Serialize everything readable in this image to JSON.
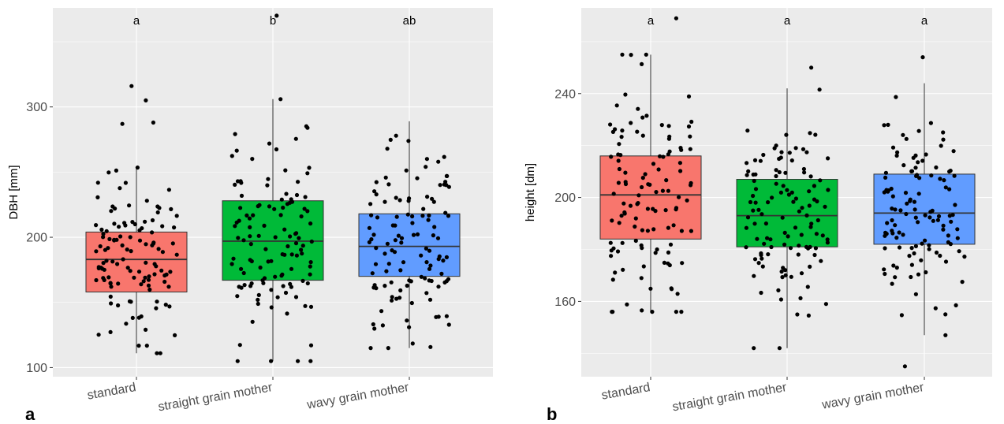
{
  "chart_data": [
    {
      "type": "box",
      "panel_label": "a",
      "title": "",
      "xlabel": "",
      "ylabel": "DBH [mm]",
      "categories": [
        "standard",
        "straight grain mother",
        "wavy grain mother"
      ],
      "colors": [
        "#F8766D",
        "#00BA38",
        "#619CFF"
      ],
      "significance_letters": [
        "a",
        "b",
        "ab"
      ],
      "yticks": [
        100,
        200,
        300
      ],
      "ylim": [
        93,
        376
      ],
      "grid": true,
      "boxes": [
        {
          "group": "standard",
          "whisker_low": 111,
          "q1": 158,
          "median": 183,
          "q3": 204,
          "whisker_high": 254
        },
        {
          "group": "straight grain mother",
          "whisker_low": 105,
          "q1": 167,
          "median": 197,
          "q3": 228,
          "whisker_high": 306
        },
        {
          "group": "wavy grain mother",
          "whisker_low": 115,
          "q1": 170,
          "median": 193,
          "q3": 218,
          "whisker_high": 289
        }
      ],
      "outliers": [
        {
          "group": "standard",
          "values": [
            287,
            288,
            305,
            316
          ]
        },
        {
          "group": "straight grain mother",
          "values": [
            370
          ]
        },
        {
          "group": "wavy grain mother",
          "values": []
        }
      ]
    },
    {
      "type": "box",
      "panel_label": "b",
      "title": "",
      "xlabel": "",
      "ylabel": "height [dm]",
      "categories": [
        "standard",
        "straight grain mother",
        "wavy grain mother"
      ],
      "colors": [
        "#F8766D",
        "#00BA38",
        "#619CFF"
      ],
      "significance_letters": [
        "a",
        "a",
        "a"
      ],
      "yticks": [
        160,
        200,
        240
      ],
      "ylim": [
        131,
        273
      ],
      "grid": true,
      "boxes": [
        {
          "group": "standard",
          "whisker_low": 156,
          "q1": 184,
          "median": 201,
          "q3": 216,
          "whisker_high": 255
        },
        {
          "group": "straight grain mother",
          "whisker_low": 142,
          "q1": 181,
          "median": 193,
          "q3": 207,
          "whisker_high": 242
        },
        {
          "group": "wavy grain mother",
          "whisker_low": 147,
          "q1": 182,
          "median": 194,
          "q3": 209,
          "whisker_high": 244
        }
      ],
      "outliers": [
        {
          "group": "standard",
          "values": [
            269
          ]
        },
        {
          "group": "straight grain mother",
          "values": [
            250
          ]
        },
        {
          "group": "wavy grain mother",
          "values": [
            254,
            135
          ]
        }
      ]
    }
  ]
}
